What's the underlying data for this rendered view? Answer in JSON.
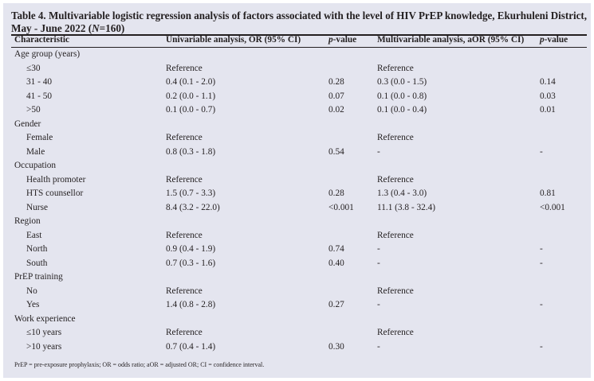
{
  "title_line1": "Table 4. Multivariable logistic regression analysis of factors associated with the level of HIV PrEP knowledge, Ekurhuleni District,",
  "title_line2_pre": "May - June 2022 (",
  "title_line2_n": "N",
  "title_line2_post": "=160)",
  "headers": {
    "characteristic": "Characteristic",
    "univariable": "Univariable analysis, OR (95% CI)",
    "p1_italic": "p",
    "p1_rest": "-value",
    "multivariable": "Multivariable analysis, aOR (95% CI)",
    "p2_italic": "p",
    "p2_rest": "-value"
  },
  "rows": [
    {
      "label": "Age group (years)",
      "group": true,
      "or": "",
      "p": "",
      "aor": "",
      "p2": ""
    },
    {
      "label": "≤30",
      "or": "Reference",
      "p": "",
      "aor": "Reference",
      "p2": ""
    },
    {
      "label": "31 - 40",
      "or": "0.4 (0.1 - 2.0)",
      "p": "0.28",
      "aor": "0.3 (0.0 - 1.5)",
      "p2": "0.14"
    },
    {
      "label": "41 - 50",
      "or": "0.2 (0.0 - 1.1)",
      "p": "0.07",
      "aor": "0.1 (0.0 - 0.8)",
      "p2": "0.03"
    },
    {
      "label": ">50",
      "or": "0.1 (0.0 - 0.7)",
      "p": "0.02",
      "aor": "0.1 (0.0 - 0.4)",
      "p2": "0.01"
    },
    {
      "label": "Gender",
      "group": true,
      "or": "",
      "p": "",
      "aor": "",
      "p2": ""
    },
    {
      "label": "Female",
      "or": "Reference",
      "p": "",
      "aor": "Reference",
      "p2": ""
    },
    {
      "label": "Male",
      "or": "0.8 (0.3 - 1.8)",
      "p": "0.54",
      "aor": "-",
      "p2": "-"
    },
    {
      "label": "Occupation",
      "group": true,
      "or": "",
      "p": "",
      "aor": "",
      "p2": ""
    },
    {
      "label": "Health promoter",
      "or": "Reference",
      "p": "",
      "aor": "Reference",
      "p2": ""
    },
    {
      "label": "HTS counsellor",
      "or": "1.5 (0.7 - 3.3)",
      "p": "0.28",
      "aor": "1.3 (0.4 - 3.0)",
      "p2": "0.81"
    },
    {
      "label": "Nurse",
      "or": "8.4 (3.2 - 22.0)",
      "p": "<0.001",
      "aor": "11.1 (3.8 - 32.4)",
      "p2": "<0.001"
    },
    {
      "label": "Region",
      "group": true,
      "or": "",
      "p": "",
      "aor": "",
      "p2": ""
    },
    {
      "label": "East",
      "or": "Reference",
      "p": "",
      "aor": "Reference",
      "p2": ""
    },
    {
      "label": "North",
      "or": "0.9 (0.4 - 1.9)",
      "p": "0.74",
      "aor": "-",
      "p2": "-"
    },
    {
      "label": "South",
      "or": "0.7 (0.3 - 1.6)",
      "p": "0.40",
      "aor": "-",
      "p2": "-"
    },
    {
      "label": "PrEP training",
      "group": true,
      "or": "",
      "p": "",
      "aor": "",
      "p2": ""
    },
    {
      "label": "No",
      "or": "Reference",
      "p": "",
      "aor": "Reference",
      "p2": ""
    },
    {
      "label": "Yes",
      "or": "1.4 (0.8 - 2.8)",
      "p": "0.27",
      "aor": "-",
      "p2": "-"
    },
    {
      "label": "Work experience",
      "group": true,
      "or": "",
      "p": "",
      "aor": "",
      "p2": ""
    },
    {
      "label": "≤10 years",
      "or": "Reference",
      "p": "",
      "aor": "Reference",
      "p2": ""
    },
    {
      "label": ">10 years",
      "or": "0.7 (0.4 - 1.4)",
      "p": "0.30",
      "aor": "-",
      "p2": "-"
    }
  ],
  "footnote": "PrEP = pre-exposure prophylaxis; OR = odds ratio; aOR = adjusted OR; CI = confidence interval."
}
